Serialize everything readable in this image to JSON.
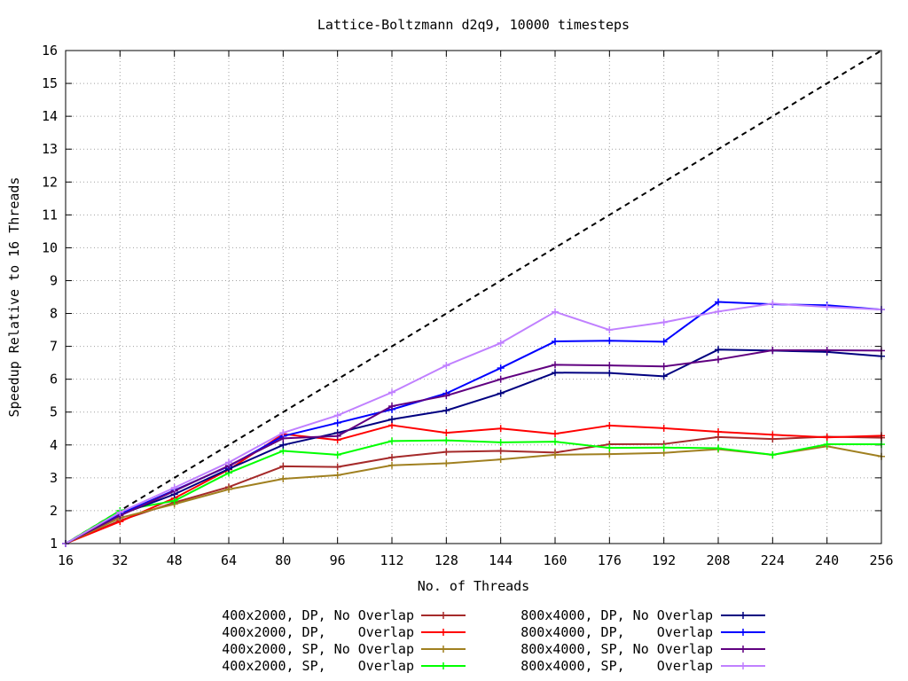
{
  "chart_data": {
    "type": "line",
    "title": "Lattice-Boltzmann d2q9, 10000 timesteps",
    "xlabel": "No. of Threads",
    "ylabel": "Speedup Relative to 16 Threads",
    "xlim": [
      16,
      256
    ],
    "ylim": [
      1,
      16
    ],
    "grid": true,
    "legend_position": "bottom",
    "x": [
      16,
      32,
      48,
      64,
      80,
      96,
      112,
      128,
      144,
      160,
      176,
      192,
      208,
      224,
      240,
      256
    ],
    "xticks": [
      "16",
      "32",
      "48",
      "64",
      "80",
      "96",
      "112",
      "128",
      "144",
      "160",
      "176",
      "192",
      "208",
      "224",
      "240",
      "256"
    ],
    "yticks": [
      "1",
      "2",
      "3",
      "4",
      "5",
      "6",
      "7",
      "8",
      "9",
      "10",
      "11",
      "12",
      "13",
      "14",
      "15",
      "16"
    ],
    "reference_line": {
      "style": "dashed",
      "color": "#000000",
      "x": [
        16,
        256
      ],
      "y": [
        1,
        16
      ]
    },
    "series": [
      {
        "name": "400x2000, DP, No Overlap",
        "color": "#a52a2a",
        "values": [
          1.0,
          1.7,
          2.25,
          2.72,
          3.35,
          3.33,
          3.62,
          3.79,
          3.82,
          3.77,
          4.02,
          4.03,
          4.24,
          4.18,
          4.25,
          4.22
        ]
      },
      {
        "name": "400x2000, DP,    Overlap",
        "color": "#ff0000",
        "values": [
          1.0,
          1.67,
          2.38,
          3.25,
          4.33,
          4.15,
          4.6,
          4.37,
          4.5,
          4.34,
          4.59,
          4.51,
          4.4,
          4.31,
          4.23,
          4.28
        ]
      },
      {
        "name": "400x2000, SP, No Overlap",
        "color": "#a08020",
        "values": [
          1.0,
          1.78,
          2.2,
          2.65,
          2.97,
          3.08,
          3.38,
          3.44,
          3.56,
          3.7,
          3.72,
          3.76,
          3.87,
          3.7,
          3.96,
          3.65
        ]
      },
      {
        "name": "400x2000, SP,    Overlap",
        "color": "#00ff00",
        "values": [
          1.0,
          2.0,
          2.3,
          3.15,
          3.82,
          3.7,
          4.12,
          4.14,
          4.08,
          4.1,
          3.91,
          3.92,
          3.9,
          3.7,
          4.02,
          4.02
        ]
      },
      {
        "name": "800x4000, DP, No Overlap",
        "color": "#000080",
        "values": [
          1.0,
          1.88,
          2.5,
          3.27,
          4.0,
          4.37,
          4.78,
          5.05,
          5.57,
          6.2,
          6.19,
          6.09,
          6.9,
          6.87,
          6.83,
          6.7
        ]
      },
      {
        "name": "800x4000, DP,    Overlap",
        "color": "#0000ff",
        "values": [
          1.0,
          1.9,
          2.62,
          3.35,
          4.27,
          4.67,
          5.08,
          5.57,
          6.34,
          7.15,
          7.17,
          7.14,
          8.35,
          8.28,
          8.25,
          8.12
        ]
      },
      {
        "name": "800x4000, SP, No Overlap",
        "color": "#600080",
        "values": [
          1.0,
          1.85,
          2.6,
          3.37,
          4.2,
          4.27,
          5.18,
          5.5,
          6.0,
          6.44,
          6.42,
          6.39,
          6.6,
          6.88,
          6.88,
          6.87
        ]
      },
      {
        "name": "800x4000, SP,    Overlap",
        "color": "#c080ff",
        "values": [
          1.0,
          1.95,
          2.7,
          3.47,
          4.37,
          4.9,
          5.6,
          6.42,
          7.1,
          8.05,
          7.5,
          7.73,
          8.06,
          8.3,
          8.2,
          8.12
        ]
      }
    ]
  }
}
